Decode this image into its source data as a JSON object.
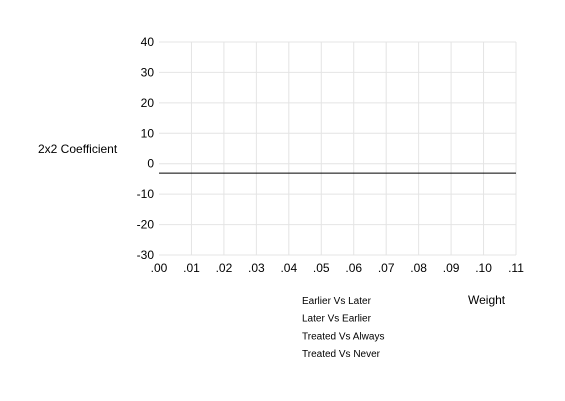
{
  "chart_data": {
    "type": "scatter",
    "ylabel": "2x2 Coefficient",
    "xlabel": "Weight",
    "xlim": [
      0,
      0.11
    ],
    "ylim": [
      -30,
      40
    ],
    "x_ticks": [
      {
        "value": 0.0,
        "label": ".00"
      },
      {
        "value": 0.01,
        "label": ".01"
      },
      {
        "value": 0.02,
        "label": ".02"
      },
      {
        "value": 0.03,
        "label": ".03"
      },
      {
        "value": 0.04,
        "label": ".04"
      },
      {
        "value": 0.05,
        "label": ".05"
      },
      {
        "value": 0.06,
        "label": ".06"
      },
      {
        "value": 0.07,
        "label": ".07"
      },
      {
        "value": 0.08,
        "label": ".08"
      },
      {
        "value": 0.09,
        "label": ".09"
      },
      {
        "value": 0.1,
        "label": ".10"
      },
      {
        "value": 0.11,
        "label": ".11"
      }
    ],
    "y_ticks": [
      {
        "value": 40,
        "label": "40"
      },
      {
        "value": 30,
        "label": "30"
      },
      {
        "value": 20,
        "label": "20"
      },
      {
        "value": 10,
        "label": "10"
      },
      {
        "value": 0,
        "label": "0"
      },
      {
        "value": -10,
        "label": "-10"
      },
      {
        "value": -20,
        "label": "-20"
      },
      {
        "value": -30,
        "label": "-30"
      }
    ],
    "grid": true,
    "legend_placement": "bottom-center",
    "series": [
      {
        "name": "Earlier Vs Later",
        "x": [],
        "y": []
      },
      {
        "name": "Later Vs Earlier",
        "x": [],
        "y": []
      },
      {
        "name": "Treated Vs Always",
        "x": [],
        "y": []
      },
      {
        "name": "Treated Vs Never",
        "x": [],
        "y": []
      }
    ],
    "reference_line": {
      "y": -3.1
    },
    "colors": {
      "grid": "#e4e4e4",
      "reference_line": "#000000",
      "text": "#000000"
    }
  }
}
